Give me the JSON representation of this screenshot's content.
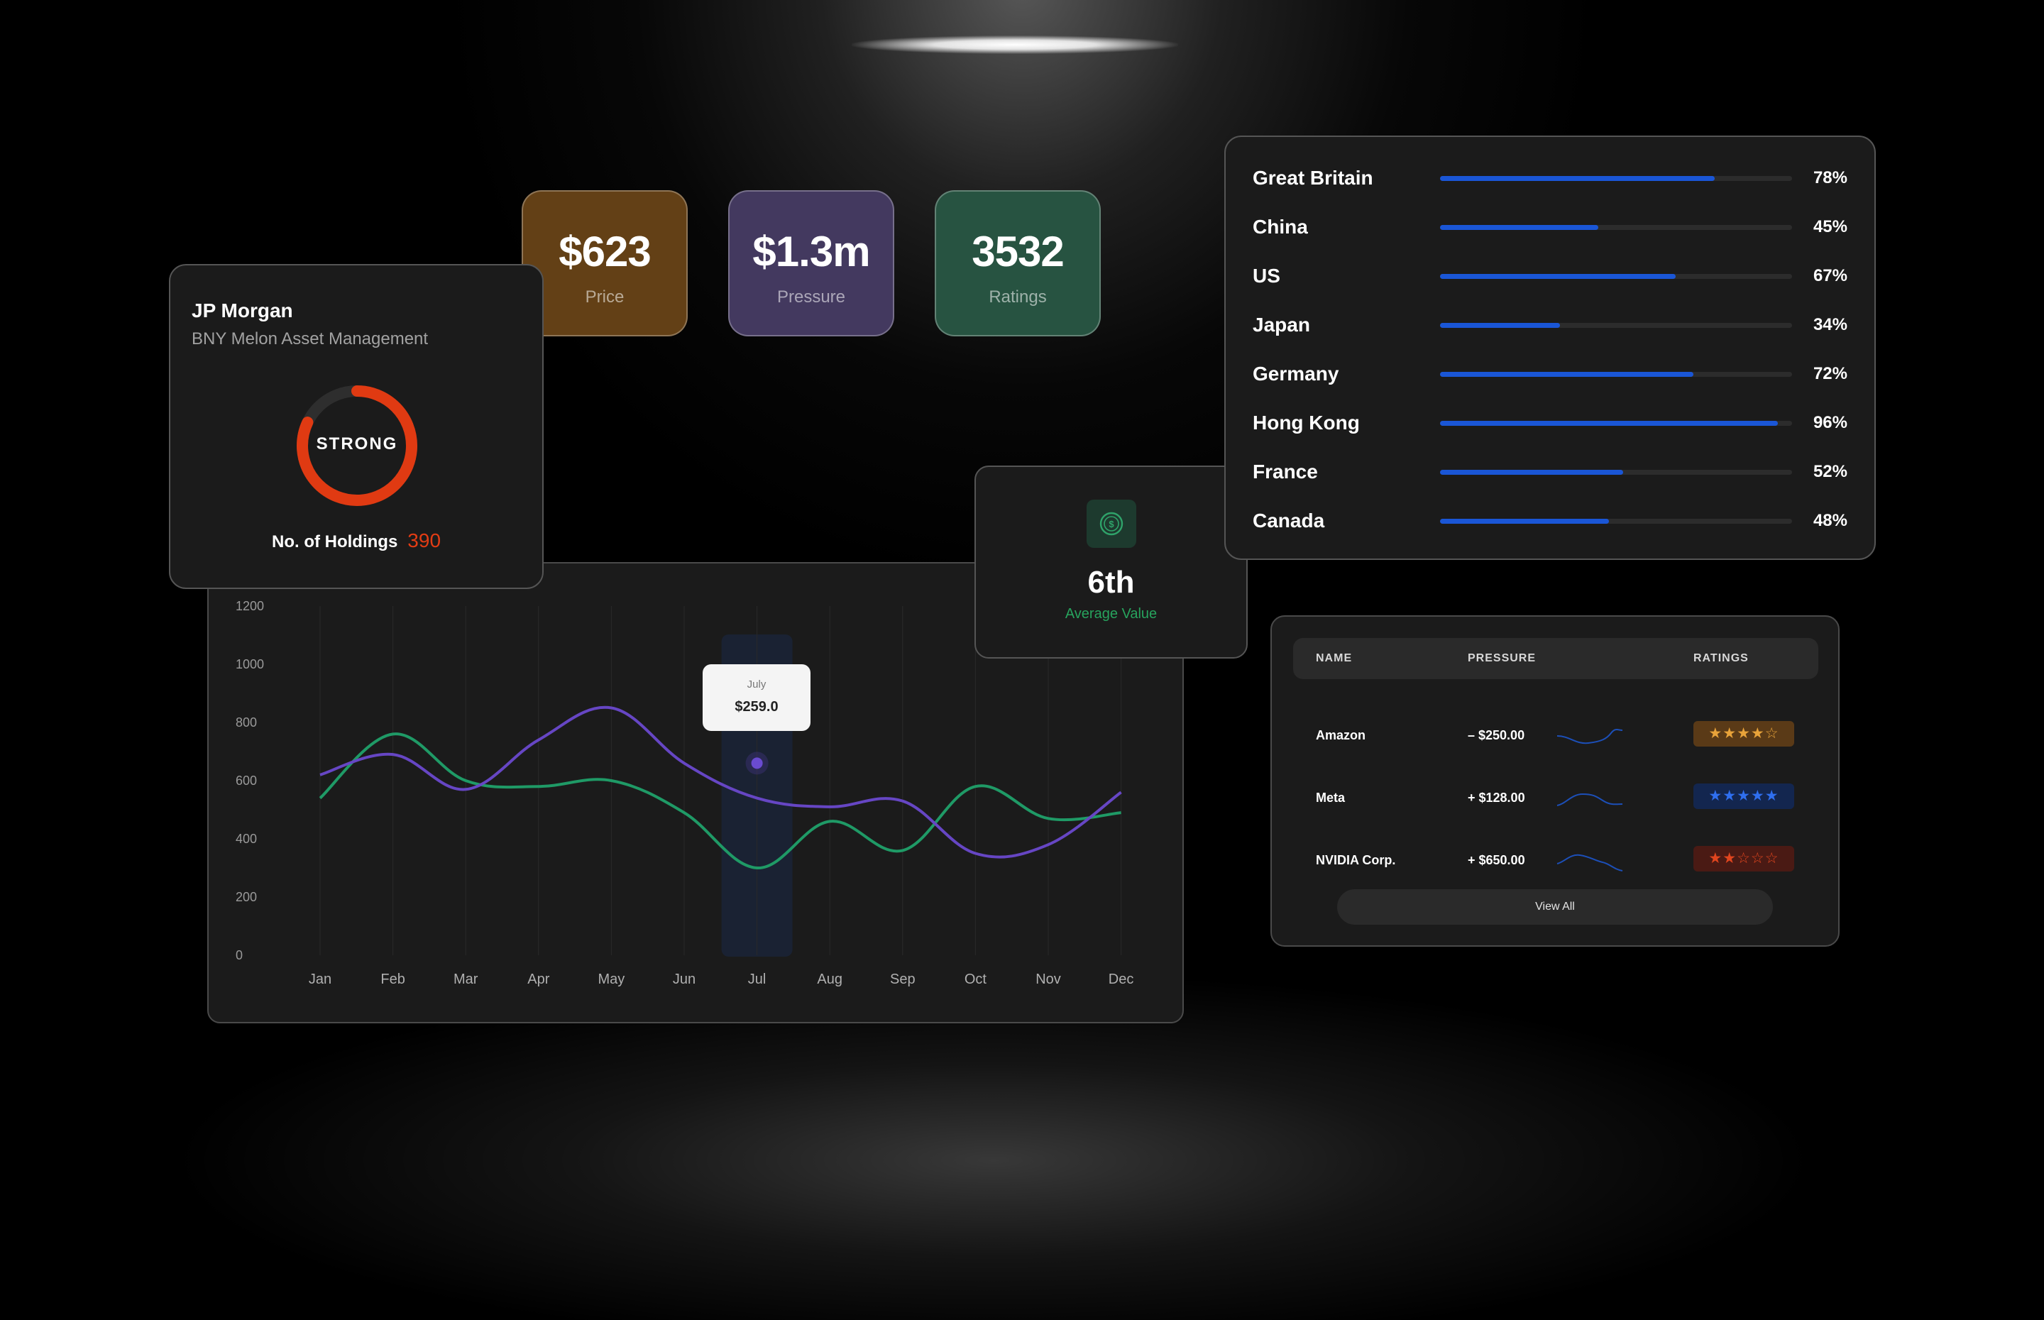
{
  "stats": [
    {
      "value": "$623",
      "label": "Price",
      "color": "#634016"
    },
    {
      "value": "$1.3m",
      "label": "Pressure",
      "color": "#43395f"
    },
    {
      "value": "3532",
      "label": "Ratings",
      "color": "#275341"
    }
  ],
  "holdings": {
    "title": "JP Morgan",
    "subtitle": "BNY Melon Asset Management",
    "gauge_label": "STRONG",
    "gauge_fraction": 0.82,
    "count_label": "No. of Holdings",
    "count_value": "390"
  },
  "average": {
    "icon": "dollar-coin-icon",
    "rank": "6th",
    "label": "Average Value"
  },
  "countries": [
    {
      "name": "Great Britain",
      "percent_text": "78%",
      "value": 78
    },
    {
      "name": "China",
      "percent_text": "45%",
      "value": 45
    },
    {
      "name": "US",
      "percent_text": "67%",
      "value": 67
    },
    {
      "name": "Japan",
      "percent_text": "34%",
      "value": 34
    },
    {
      "name": "Germany",
      "percent_text": "72%",
      "value": 72
    },
    {
      "name": "Hong Kong",
      "percent_text": "96%",
      "value": 96
    },
    {
      "name": "France",
      "percent_text": "52%",
      "value": 52
    },
    {
      "name": "Canada",
      "percent_text": "48%",
      "value": 48
    }
  ],
  "table": {
    "headers": [
      "NAME",
      "PRESSURE",
      "RATINGS"
    ],
    "rows": [
      {
        "name": "Amazon",
        "pressure": "– $250.00",
        "stars": 4,
        "star_color": "#e8a33a",
        "badge_color": "#5a3a17",
        "spark_icon": "sparkline-icon"
      },
      {
        "name": "Meta",
        "pressure": "+ $128.00",
        "stars": 5,
        "star_color": "#2f6ff0",
        "badge_color": "#13264f",
        "spark_icon": "sparkline-icon"
      },
      {
        "name": "NVIDIA Corp.",
        "pressure": "+ $650.00",
        "stars": 2,
        "star_color": "#e0451e",
        "badge_color": "#4a1a14",
        "spark_icon": "sparkline-icon"
      }
    ],
    "view_all": "View All"
  },
  "chart_data": {
    "type": "line",
    "categories": [
      "Jan",
      "Feb",
      "Mar",
      "Apr",
      "May",
      "Jun",
      "Jul",
      "Aug",
      "Sep",
      "Oct",
      "Nov",
      "Dec"
    ],
    "ylim": [
      0,
      1200
    ],
    "yticks": [
      0,
      200,
      400,
      600,
      800,
      1000,
      1200
    ],
    "grid": "vertical",
    "series": [
      {
        "color": "#6646c4",
        "values": [
          620,
          690,
          570,
          740,
          850,
          660,
          540,
          510,
          530,
          350,
          380,
          560
        ]
      },
      {
        "color": "#1f9a66",
        "values": [
          540,
          760,
          600,
          580,
          600,
          490,
          300,
          460,
          360,
          580,
          470,
          490
        ]
      }
    ],
    "highlight": {
      "category": "Jul",
      "x_index": 6,
      "y": 660,
      "tooltip_month": "July",
      "tooltip_value": "$259.0"
    }
  }
}
